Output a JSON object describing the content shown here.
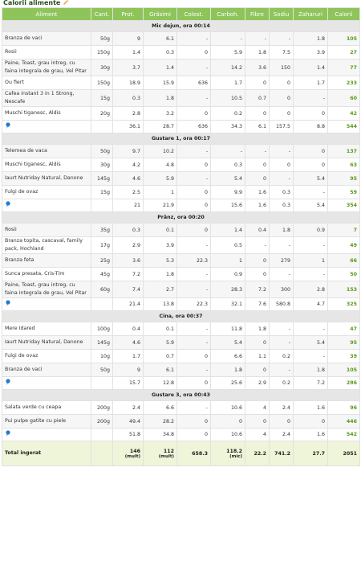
{
  "title": "Calorii alimente",
  "columns": [
    "Aliment",
    "Cant.",
    "Prot.",
    "Grăsimi",
    "Colest.",
    "Carboh.",
    "Fibre",
    "Sodiu",
    "Zaharuri",
    "Calorii"
  ],
  "sections": [
    {
      "name": "Mic dejun, ora 00:14",
      "items": [
        [
          "Branza de vaci",
          "50g",
          "9",
          "6.1",
          "-",
          "-",
          "-",
          "-",
          "1.8",
          "105"
        ],
        [
          "Rosii",
          "150g",
          "1.4",
          "0.3",
          "0",
          "5.9",
          "1.8",
          "7.5",
          "3.9",
          "27"
        ],
        [
          "Paine, Toast, grau intreg, cu faina integrala de grau, Vel Pitar",
          "30g",
          "3.7",
          "1.4",
          "-",
          "14.2",
          "3.6",
          "150",
          "1.4",
          "77"
        ],
        [
          "Ou fiert",
          "150g",
          "18.9",
          "15.9",
          "636",
          "1.7",
          "0",
          "0",
          "1.7",
          "233"
        ],
        [
          "Cafea instant 3 in 1 Strong, Nescafe",
          "15g",
          "0.3",
          "1.8",
          "-",
          "10.5",
          "0.7",
          "0",
          "-",
          "60"
        ],
        [
          "Muschi tiganesc, Aldis",
          "20g",
          "2.8",
          "3.2",
          "0",
          "0.2",
          "0",
          "0",
          "0",
          "42"
        ]
      ],
      "subtotal": [
        "36.1",
        "28.7",
        "636",
        "34.3",
        "6.1",
        "157.5",
        "8.8",
        "544"
      ]
    },
    {
      "name": "Gustare 1, ora 00:17",
      "items": [
        [
          "Telemea de vaca",
          "50g",
          "9.7",
          "10.2",
          "-",
          "-",
          "-",
          "-",
          "0",
          "137"
        ],
        [
          "Muschi tiganesc, Aldis",
          "30g",
          "4.2",
          "4.8",
          "0",
          "0.3",
          "0",
          "0",
          "0",
          "63"
        ],
        [
          "Iaurt Nutriday Natural, Danone",
          "145g",
          "4.6",
          "5.9",
          "-",
          "5.4",
          "0",
          "-",
          "5.4",
          "95"
        ],
        [
          "Fulgi de ovaz",
          "15g",
          "2.5",
          "1",
          "0",
          "9.9",
          "1.6",
          "0.3",
          "-",
          "59"
        ]
      ],
      "subtotal": [
        "21",
        "21.9",
        "0",
        "15.6",
        "1.6",
        "0.3",
        "5.4",
        "354"
      ]
    },
    {
      "name": "Prânz, ora 00:20",
      "items": [
        [
          "Rosii",
          "35g",
          "0.3",
          "0.1",
          "0",
          "1.4",
          "0.4",
          "1.8",
          "0.9",
          "7"
        ],
        [
          "Branza topita, cascaval, family pack, Hochland",
          "17g",
          "2.9",
          "3.9",
          "-",
          "0.5",
          "-",
          "-",
          "-",
          "49"
        ],
        [
          "Branza feta",
          "25g",
          "3.6",
          "5.3",
          "22.3",
          "1",
          "0",
          "279",
          "1",
          "66"
        ],
        [
          "Sunca presata, Cris-Tim",
          "45g",
          "7.2",
          "1.8",
          "-",
          "0.9",
          "0",
          "-",
          "-",
          "50"
        ],
        [
          "Paine, Toast, grau intreg, cu faina integrala de grau, Vel Pitar",
          "60g",
          "7.4",
          "2.7",
          "-",
          "28.3",
          "7.2",
          "300",
          "2.8",
          "153"
        ]
      ],
      "subtotal": [
        "21.4",
        "13.8",
        "22.3",
        "32.1",
        "7.6",
        "580.8",
        "4.7",
        "325"
      ]
    },
    {
      "name": "Cina, ora 00:37",
      "items": [
        [
          "Mere Idared",
          "100g",
          "0.4",
          "0.1",
          "-",
          "11.8",
          "1.8",
          "-",
          "-",
          "47"
        ],
        [
          "Iaurt Nutriday Natural, Danone",
          "145g",
          "4.6",
          "5.9",
          "-",
          "5.4",
          "0",
          "-",
          "5.4",
          "95"
        ],
        [
          "Fulgi de ovaz",
          "10g",
          "1.7",
          "0.7",
          "0",
          "6.6",
          "1.1",
          "0.2",
          "-",
          "39"
        ],
        [
          "Branza de vaci",
          "50g",
          "9",
          "6.1",
          "-",
          "1.8",
          "0",
          "-",
          "1.8",
          "105"
        ]
      ],
      "subtotal": [
        "15.7",
        "12.8",
        "0",
        "25.6",
        "2.9",
        "0.2",
        "7.2",
        "286"
      ]
    },
    {
      "name": "Gustare 3, ora 00:43",
      "items": [
        [
          "Salata verde cu ceapa",
          "200g",
          "2.4",
          "6.6",
          "-",
          "10.6",
          "4",
          "2.4",
          "1.6",
          "96"
        ],
        [
          "Pui pulpe gatite cu piele",
          "200g",
          "49.4",
          "28.2",
          "0",
          "0",
          "0",
          "0",
          "0",
          "446"
        ]
      ],
      "subtotal": [
        "51.8",
        "34.8",
        "0",
        "10.6",
        "4",
        "2.4",
        "1.6",
        "542"
      ]
    }
  ],
  "total": {
    "label": "Total ingerat",
    "values": [
      "146",
      "112",
      "658.3",
      "118.2",
      "22.2",
      "741.2",
      "27.7",
      "2051"
    ],
    "notes": [
      "(mult)",
      "(mult)",
      null,
      "(mic)",
      null,
      null,
      null,
      null
    ]
  }
}
